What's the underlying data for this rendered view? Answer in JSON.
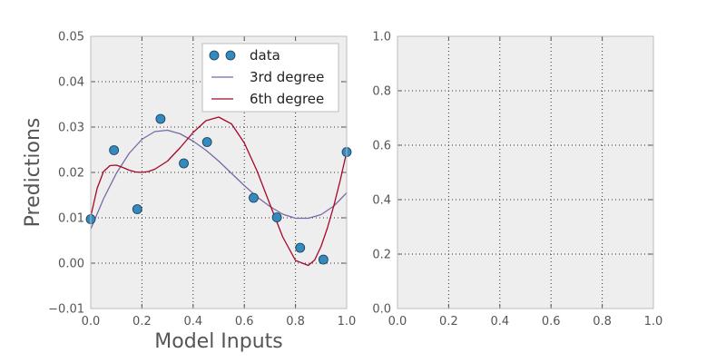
{
  "chart_data": [
    {
      "type": "line",
      "xlabel": "Model Inputs",
      "ylabel": "Predictions",
      "xlim": [
        0.0,
        1.0
      ],
      "ylim": [
        -0.01,
        0.05
      ],
      "xticks": [
        "0.0",
        "0.2",
        "0.4",
        "0.6",
        "0.8",
        "1.0"
      ],
      "yticks": [
        "−0.01",
        "0.00",
        "0.01",
        "0.02",
        "0.03",
        "0.04",
        "0.05"
      ],
      "xtick_values": [
        0.0,
        0.2,
        0.4,
        0.6,
        0.8,
        1.0
      ],
      "ytick_values": [
        -0.01,
        0.0,
        0.01,
        0.02,
        0.03,
        0.04,
        0.05
      ],
      "grid": true,
      "legend": "top-right",
      "series": [
        {
          "name": "data",
          "kind": "scatter",
          "color": "#348ABD",
          "x": [
            0.0,
            0.0909,
            0.1818,
            0.2727,
            0.3636,
            0.4545,
            0.6364,
            0.7273,
            0.8182,
            0.9091,
            1.0
          ],
          "y": [
            0.0097,
            0.0249,
            0.0119,
            0.0318,
            0.022,
            0.0267,
            0.0144,
            0.0101,
            0.0034,
            0.0008,
            0.0245
          ]
        },
        {
          "name": "3rd degree",
          "kind": "line",
          "color": "#7A68A6",
          "x": [
            0.0,
            0.05,
            0.1,
            0.15,
            0.2,
            0.25,
            0.3,
            0.35,
            0.4,
            0.45,
            0.5,
            0.55,
            0.6,
            0.65,
            0.7,
            0.75,
            0.8,
            0.85,
            0.9,
            0.95,
            1.0
          ],
          "y": [
            0.0075,
            0.0142,
            0.0198,
            0.0242,
            0.0273,
            0.029,
            0.0293,
            0.0285,
            0.0269,
            0.0249,
            0.0225,
            0.0198,
            0.0171,
            0.0146,
            0.0125,
            0.0108,
            0.0099,
            0.0099,
            0.0107,
            0.0126,
            0.0155
          ]
        },
        {
          "name": "6th degree",
          "kind": "line",
          "color": "#A60628",
          "x": [
            0.0,
            0.025,
            0.05,
            0.075,
            0.1,
            0.125,
            0.15,
            0.175,
            0.2,
            0.225,
            0.25,
            0.3,
            0.35,
            0.4,
            0.45,
            0.5,
            0.55,
            0.6,
            0.65,
            0.7,
            0.75,
            0.8,
            0.85,
            0.875,
            0.9,
            0.925,
            0.95,
            0.975,
            1.0
          ],
          "y": [
            0.0103,
            0.0165,
            0.0202,
            0.0215,
            0.0216,
            0.0211,
            0.0205,
            0.0201,
            0.02,
            0.0202,
            0.0207,
            0.0225,
            0.0255,
            0.0288,
            0.0314,
            0.0322,
            0.0307,
            0.0265,
            0.0203,
            0.013,
            0.0058,
            0.0006,
            -0.0005,
            0.0007,
            0.0037,
            0.0078,
            0.0127,
            0.0183,
            0.0245
          ]
        }
      ]
    },
    {
      "type": "line",
      "xlabel": "",
      "ylabel": "",
      "xlim": [
        0.0,
        1.0
      ],
      "ylim": [
        0.0,
        1.0
      ],
      "xticks": [
        "0.0",
        "0.2",
        "0.4",
        "0.6",
        "0.8",
        "1.0"
      ],
      "yticks": [
        "0.0",
        "0.2",
        "0.4",
        "0.6",
        "0.8",
        "1.0"
      ],
      "xtick_values": [
        0.0,
        0.2,
        0.4,
        0.6,
        0.8,
        1.0
      ],
      "ytick_values": [
        0.0,
        0.2,
        0.4,
        0.6,
        0.8,
        1.0
      ],
      "grid": true,
      "series": []
    }
  ]
}
